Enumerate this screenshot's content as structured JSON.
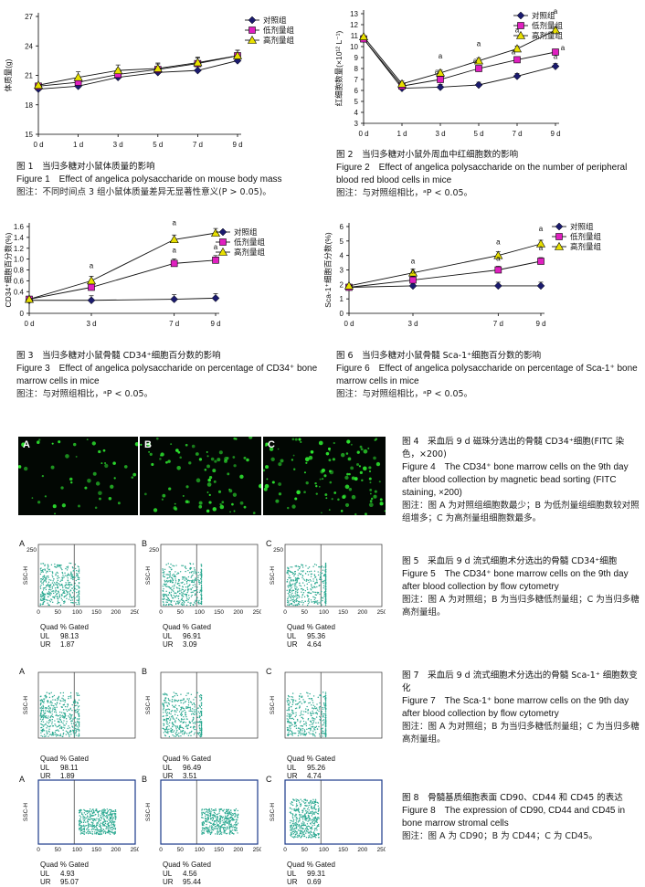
{
  "fig1": {
    "ylabel": "体质量(g)",
    "legend": [
      "对照组",
      "低剂量组",
      "高剂量组"
    ],
    "caption_zh": "图 1　当归多糖对小鼠体质量的影响",
    "caption_en": "Figure 1　Effect of angelica polysaccharide on mouse body mass",
    "note": "图注：不同时间点 3 组小鼠体质量差异无显著性意义(P > 0.05)。",
    "chart_data": {
      "type": "line",
      "categories": [
        "0 d",
        "1 d",
        "3 d",
        "5 d",
        "7 d",
        "9 d"
      ],
      "ylim": [
        15,
        27
      ],
      "yticks": [
        "15",
        "18",
        "21",
        "24",
        "27"
      ],
      "series": [
        {
          "name": "对照组",
          "values": [
            19.6,
            19.9,
            20.8,
            21.3,
            21.5,
            22.5
          ]
        },
        {
          "name": "低剂量组",
          "values": [
            19.9,
            20.3,
            21.1,
            21.6,
            22.2,
            23.0
          ]
        },
        {
          "name": "高剂量组",
          "values": [
            20.0,
            20.8,
            21.5,
            21.7,
            22.3,
            23.0
          ]
        }
      ]
    }
  },
  "fig2": {
    "ylabel": "红细胞数量(×10¹² L⁻¹)",
    "legend": [
      "对照组",
      "低剂量组",
      "高剂量组"
    ],
    "caption_zh": "图 2　当归多糖对小鼠外周血中红细胞数的影响",
    "caption_en": "Figure 2　Effect of angelica polysaccharide on the number of peripheral blood red blood cells in mice",
    "note": "图注：与对照组相比，ᵃP < 0.05。",
    "chart_data": {
      "type": "line",
      "categories": [
        "0 d",
        "1 d",
        "3 d",
        "5 d",
        "7 d",
        "9 d"
      ],
      "ylim": [
        3,
        13
      ],
      "yticks": [
        "3",
        "4",
        "5",
        "6",
        "7",
        "8",
        "9",
        "10",
        "11",
        "12",
        "13"
      ],
      "annotation": "a",
      "series": [
        {
          "name": "对照组",
          "values": [
            10.7,
            6.2,
            6.3,
            6.5,
            7.3,
            8.2
          ]
        },
        {
          "name": "低剂量组",
          "values": [
            10.7,
            6.4,
            7.0,
            8.0,
            8.8,
            9.5
          ]
        },
        {
          "name": "高剂量组",
          "values": [
            10.9,
            6.6,
            7.6,
            8.7,
            9.8,
            11.5
          ]
        }
      ]
    }
  },
  "fig3": {
    "ylabel": "CD34⁺细胞百分数(%)",
    "legend": [
      "对照组",
      "低剂量组",
      "高剂量组"
    ],
    "caption_zh": "图 3　当归多糖对小鼠骨髓 CD34⁺细胞百分数的影响",
    "caption_en": "Figure 3　Effect of angelica polysaccharide on percentage of CD34⁺ bone marrow cells in mice",
    "note": "图注：与对照组相比，ᵃP < 0.05。",
    "chart_data": {
      "type": "line",
      "categories": [
        "0 d",
        "3 d",
        "7 d",
        "9 d"
      ],
      "x": [
        0,
        3,
        7,
        9
      ],
      "ylim": [
        0,
        1.6
      ],
      "yticks": [
        "0",
        "0.4",
        "0.6",
        "0.8",
        "1.0",
        "1.2",
        "1.4",
        "1.6"
      ],
      "annotation": "a",
      "series": [
        {
          "name": "对照组",
          "values": [
            0.24,
            0.24,
            0.26,
            0.28
          ]
        },
        {
          "name": "低剂量组",
          "values": [
            0.26,
            0.48,
            0.92,
            0.98
          ]
        },
        {
          "name": "高剂量组",
          "values": [
            0.26,
            0.6,
            1.36,
            1.48
          ]
        }
      ]
    }
  },
  "fig6": {
    "ylabel": "Sca-1⁺细胞百分数(%)",
    "legend": [
      "对照组",
      "低剂量组",
      "高剂量组"
    ],
    "caption_zh": "图 6　当归多糖对小鼠骨髓 Sca-1⁺细胞百分数的影响",
    "caption_en": "Figure 6　Effect of angelica polysaccharide on percentage of Sca-1⁺ bone marrow cells in mice",
    "note": "图注：与对照组相比，ᵃP < 0.05。",
    "chart_data": {
      "type": "line",
      "categories": [
        "0 d",
        "3 d",
        "7 d",
        "9 d"
      ],
      "x": [
        0,
        3,
        7,
        9
      ],
      "ylim": [
        0,
        6
      ],
      "yticks": [
        "0",
        "1",
        "2",
        "3",
        "4",
        "5",
        "6"
      ],
      "annotation": "a",
      "series": [
        {
          "name": "对照组",
          "values": [
            1.8,
            1.9,
            1.9,
            1.9
          ]
        },
        {
          "name": "低剂量组",
          "values": [
            1.8,
            2.3,
            3.0,
            3.6
          ]
        },
        {
          "name": "高剂量组",
          "values": [
            1.9,
            2.8,
            4.0,
            4.8
          ]
        }
      ]
    }
  },
  "fig4": {
    "panels": [
      "A",
      "B",
      "C"
    ],
    "caption_zh": "图 4　采血后 9 d 磁珠分选出的骨髓 CD34⁺细胞(FITC 染色，×200)",
    "caption_en": "Figure 4　The CD34⁺ bone marrow cells on the 9th day after blood collection by magnetic bead sorting (FITC staining, ×200)",
    "note": "图注：图 A 为对照组细胞数最少；B 为低剂量组细胞数较对照组增多；C 为高剂量组细胞数最多。"
  },
  "flow_common": {
    "quad_header": "Quad  % Gated",
    "ul": "UL",
    "ur": "UR",
    "ssc": "SSC-H",
    "ymax": "250",
    "xticks": [
      "0",
      "50",
      "100",
      "150",
      "200",
      "250"
    ]
  },
  "fig5": {
    "panels": [
      {
        "label": "A",
        "ul": "98.13",
        "ur": "1.87"
      },
      {
        "label": "B",
        "ul": "96.91",
        "ur": "3.09"
      },
      {
        "label": "C",
        "ul": "95.36",
        "ur": "4.64"
      }
    ],
    "caption_zh": "图 5　采血后 9 d 流式细胞术分选出的骨髓 CD34⁺细胞",
    "caption_en": "Figure 5　The CD34⁺ bone marrow cells on the 9th day after blood collection by flow cytometry",
    "note": "图注：图 A 为对照组；B 为当归多糖低剂量组；C 为当归多糖高剂量组。"
  },
  "fig7": {
    "panels": [
      {
        "label": "A",
        "ul": "98.11",
        "ur": "1.89"
      },
      {
        "label": "B",
        "ul": "96.49",
        "ur": "3.51"
      },
      {
        "label": "C",
        "ul": "95.26",
        "ur": "4.74"
      }
    ],
    "caption_zh": "图 7　采血后 9 d 流式细胞术分选出的骨髓 Sca-1⁺ 细胞数变化",
    "caption_en": "Figure 7　The Sca-1⁺ bone marrow cells on the 9th day after blood collection by flow cytometry",
    "note": "图注：图 A 为对照组；B 为当归多糖低剂量组；C 为当归多糖高剂量组。"
  },
  "fig8": {
    "panels": [
      {
        "label": "A",
        "ul": "4.93",
        "ur": "95.07"
      },
      {
        "label": "B",
        "ul": "4.56",
        "ur": "95.44"
      },
      {
        "label": "C",
        "ul": "99.31",
        "ur": "0.69"
      }
    ],
    "caption_zh": "图 8　骨髓基质细胞表面 CD90、CD44 和 CD45 的表达",
    "caption_en": "Figure 8　The expression of CD90, CD44 and CD45 in bone marrow stromal cells",
    "note": "图注：图 A 为 CD90；B 为 CD44；C 为 CD45。"
  },
  "colors": {
    "control": "#1b1b6e",
    "low": "#e020c0",
    "high": "#e8e000",
    "dots": "#2aa890",
    "fluo": "#2ee830"
  }
}
